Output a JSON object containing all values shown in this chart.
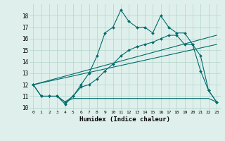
{
  "xlabel": "Humidex (Indice chaleur)",
  "bg_color": "#dff0ec",
  "grid_color": "#b8d8d0",
  "line_color": "#006b6b",
  "xlim": [
    -0.5,
    23.5
  ],
  "ylim": [
    9.8,
    19.0
  ],
  "yticks": [
    10,
    11,
    12,
    13,
    14,
    15,
    16,
    17,
    18
  ],
  "xticks": [
    0,
    1,
    2,
    3,
    4,
    5,
    6,
    7,
    8,
    9,
    10,
    11,
    12,
    13,
    14,
    15,
    16,
    17,
    18,
    19,
    20,
    21,
    22,
    23
  ],
  "curve1_x": [
    0,
    1,
    2,
    3,
    4,
    5,
    6,
    7,
    8,
    9,
    10,
    11,
    12,
    13,
    14,
    15,
    16,
    17,
    18,
    19,
    20,
    21,
    22,
    23
  ],
  "curve1_y": [
    12,
    11,
    11,
    11,
    10.5,
    11,
    12,
    13,
    14.5,
    16.5,
    17.0,
    18.5,
    17.5,
    17.0,
    17.0,
    16.5,
    18.0,
    17.0,
    16.5,
    16.5,
    15.5,
    14.5,
    11.5,
    10.5
  ],
  "curve2_x": [
    0,
    1,
    2,
    3,
    4,
    5,
    6,
    7,
    8,
    9,
    10,
    11,
    12,
    13,
    14,
    15,
    16,
    17,
    18,
    19,
    20,
    21,
    22,
    23
  ],
  "curve2_y": [
    12,
    11,
    11,
    11,
    10.3,
    11.0,
    11.8,
    12.0,
    12.5,
    13.2,
    13.8,
    14.5,
    15.0,
    15.3,
    15.5,
    15.7,
    16.0,
    16.3,
    16.3,
    15.5,
    15.5,
    13.2,
    11.5,
    10.5
  ],
  "flat_x": [
    3,
    4,
    5,
    6,
    7,
    8,
    9,
    10,
    11,
    12,
    13,
    14,
    15,
    16,
    17,
    18,
    19,
    20,
    21,
    22,
    23
  ],
  "flat_y": [
    11.0,
    10.5,
    10.8,
    10.8,
    10.8,
    10.8,
    10.8,
    10.8,
    10.8,
    10.8,
    10.8,
    10.8,
    10.8,
    10.8,
    10.8,
    10.8,
    10.8,
    10.8,
    10.8,
    10.8,
    10.5
  ],
  "line1_x": [
    0,
    23
  ],
  "line1_y": [
    12.0,
    16.3
  ],
  "line2_x": [
    0,
    23
  ],
  "line2_y": [
    12.0,
    15.5
  ]
}
